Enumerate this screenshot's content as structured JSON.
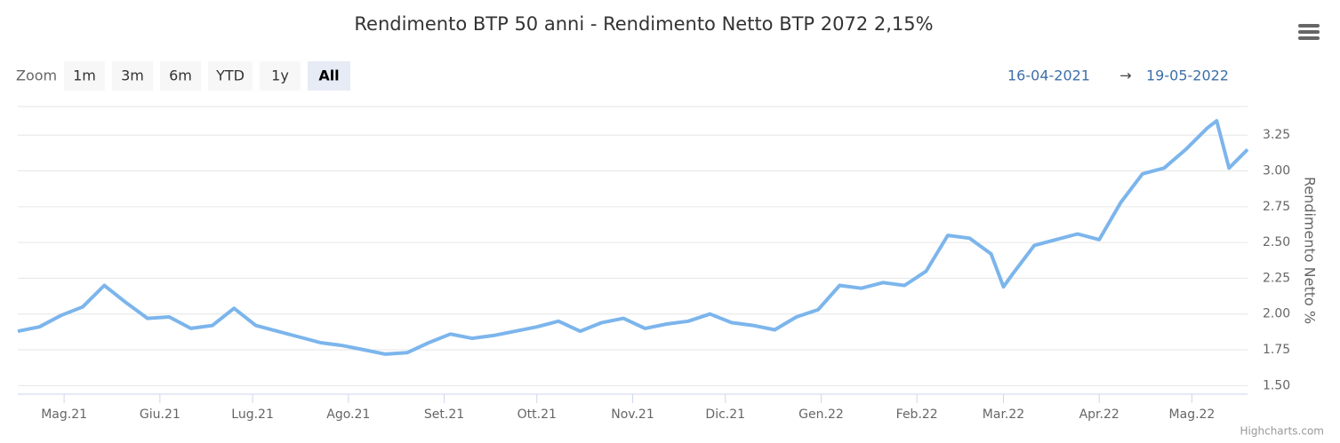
{
  "chart_data": {
    "type": "line",
    "title": "Rendimento BTP 50 anni - Rendimento Netto BTP 2072 2,15%",
    "y_title": "Rendimento Netto %",
    "zoom_label": "Zoom",
    "zoom_buttons": [
      "1m",
      "3m",
      "6m",
      "YTD",
      "1y",
      "All"
    ],
    "range_from": "16-04-2021",
    "range_arrow": "→",
    "range_to": "19-05-2022",
    "credits": "Highcharts.com",
    "xlim": [
      "2021-04-16",
      "2022-05-19"
    ],
    "xticks": [
      {
        "value": "2021-05-01",
        "label": "Mag.21"
      },
      {
        "value": "2021-06-01",
        "label": "Giu.21"
      },
      {
        "value": "2021-07-01",
        "label": "Lug.21"
      },
      {
        "value": "2021-08-01",
        "label": "Ago.21"
      },
      {
        "value": "2021-09-01",
        "label": "Set.21"
      },
      {
        "value": "2021-10-01",
        "label": "Ott.21"
      },
      {
        "value": "2021-11-01",
        "label": "Nov.21"
      },
      {
        "value": "2021-12-01",
        "label": "Dic.21"
      },
      {
        "value": "2022-01-01",
        "label": "Gen.22"
      },
      {
        "value": "2022-02-01",
        "label": "Feb.22"
      },
      {
        "value": "2022-03-01",
        "label": "Mar.22"
      },
      {
        "value": "2022-04-01",
        "label": "Apr.22"
      },
      {
        "value": "2022-05-01",
        "label": "Mag.22"
      }
    ],
    "ylim": [
      1.44,
      3.45
    ],
    "yticks": [
      {
        "value": 1.5,
        "label": "1.50"
      },
      1.75,
      {
        "value": 2,
        "label": "2.00"
      },
      2.25,
      {
        "value": 2.5,
        "label": "2.50"
      },
      2.75,
      {
        "value": 3,
        "label": "3.00"
      },
      3.25
    ],
    "grid": true,
    "color": "#7cb5ec",
    "x": [
      "2021-04-16",
      "2021-04-23",
      "2021-04-30",
      "2021-05-07",
      "2021-05-14",
      "2021-05-21",
      "2021-05-28",
      "2021-06-04",
      "2021-06-11",
      "2021-06-18",
      "2021-06-25",
      "2021-07-02",
      "2021-07-09",
      "2021-07-16",
      "2021-07-23",
      "2021-07-30",
      "2021-08-06",
      "2021-08-13",
      "2021-08-20",
      "2021-08-27",
      "2021-09-03",
      "2021-09-10",
      "2021-09-17",
      "2021-09-24",
      "2021-10-01",
      "2021-10-08",
      "2021-10-15",
      "2021-10-22",
      "2021-10-29",
      "2021-11-05",
      "2021-11-12",
      "2021-11-19",
      "2021-11-26",
      "2021-12-03",
      "2021-12-10",
      "2021-12-17",
      "2021-12-24",
      "2021-12-31",
      "2022-01-07",
      "2022-01-14",
      "2022-01-21",
      "2022-01-28",
      "2022-02-04",
      "2022-02-11",
      "2022-02-18",
      "2022-02-25",
      "2022-03-01",
      "2022-03-04",
      "2022-03-11",
      "2022-03-18",
      "2022-03-25",
      "2022-04-01",
      "2022-04-08",
      "2022-04-15",
      "2022-04-22",
      "2022-04-29",
      "2022-05-06",
      "2022-05-09",
      "2022-05-13",
      "2022-05-19"
    ],
    "values": [
      1.88,
      1.91,
      1.99,
      2.05,
      2.2,
      2.08,
      1.97,
      1.98,
      1.9,
      1.92,
      2.04,
      1.92,
      1.88,
      1.84,
      1.8,
      1.78,
      1.75,
      1.72,
      1.73,
      1.8,
      1.86,
      1.83,
      1.85,
      1.88,
      1.91,
      1.95,
      1.88,
      1.94,
      1.97,
      1.9,
      1.93,
      1.95,
      2.0,
      1.94,
      1.92,
      1.89,
      1.98,
      2.03,
      2.2,
      2.18,
      2.22,
      2.2,
      2.3,
      2.55,
      2.53,
      2.42,
      2.19,
      2.28,
      2.48,
      2.52,
      2.56,
      2.52,
      2.78,
      2.98,
      3.02,
      3.15,
      3.3,
      3.35,
      3.02,
      3.15
    ]
  }
}
